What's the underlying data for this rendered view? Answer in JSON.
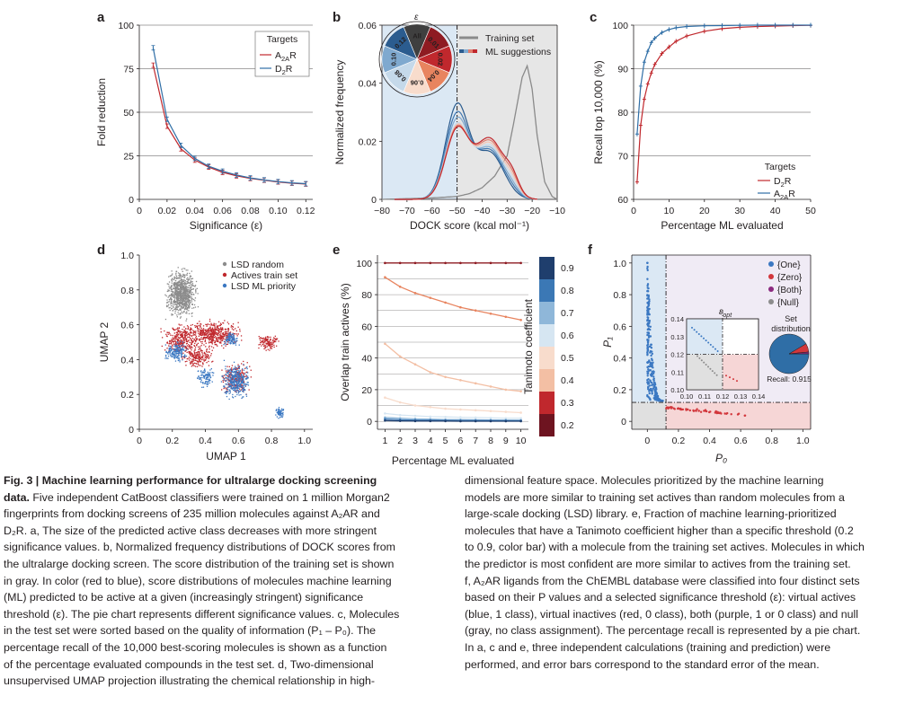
{
  "figure": {
    "caption_left_lines": [
      {
        "bold": "Fig. 3 | Machine learning performance for ultralarge docking screening",
        "text": ""
      },
      {
        "bold": "data.",
        "text": " Five independent CatBoost classifiers were trained on 1 million Morgan2"
      },
      {
        "bold": "",
        "text": "fingerprints from docking screens of 235 million molecules against A₂AR and"
      },
      {
        "bold": "",
        "text": "D₂R. a, The size of the predicted active class decreases with more stringent"
      },
      {
        "bold": "",
        "text": "significance values. b, Normalized frequency distributions of DOCK scores from"
      },
      {
        "bold": "",
        "text": "the ultralarge docking screen. The score distribution of the training set is shown"
      },
      {
        "bold": "",
        "text": "in gray. In color (red to blue), score distributions of molecules machine learning"
      },
      {
        "bold": "",
        "text": "(ML) predicted to be active at a given (increasingly stringent) significance"
      },
      {
        "bold": "",
        "text": "threshold (ε). The pie chart represents different significance values. c, Molecules"
      },
      {
        "bold": "",
        "text": "in the test set were sorted based on the quality of information (P₁ – P₀). The"
      },
      {
        "bold": "",
        "text": "percentage recall of the 10,000 best-scoring molecules is shown as a function"
      },
      {
        "bold": "",
        "text": "of the percentage evaluated compounds in the test set. d, Two-dimensional"
      },
      {
        "bold": "",
        "text": "unsupervised UMAP projection illustrating the chemical relationship in high-"
      }
    ],
    "caption_right_lines": [
      "dimensional feature space. Molecules prioritized by the machine learning",
      "models are more similar to training set actives than random molecules from a",
      "large-scale docking (LSD) library. e, Fraction of machine learning-prioritized",
      "molecules that have a Tanimoto coefficient higher than a specific threshold (0.2",
      "to 0.9, color bar) with a molecule from the training set actives. Molecules in which",
      "the predictor is most confident are more similar to actives from the training set.",
      "f, A₂AR ligands from the ChEMBL database were classified into four distinct sets",
      "based on their P values and a selected significance threshold (ε): virtual actives",
      "(blue, 1 class), virtual inactives (red, 0 class), both (purple, 1 or 0 class) and null",
      "(gray, no class assignment). The percentage recall is represented by a pie chart.",
      "In a, c and e, three independent calculations (training and prediction) were",
      "performed, and error bars correspond to the standard error of the mean."
    ]
  },
  "chart_data": [
    {
      "panel": "a",
      "type": "line",
      "xlabel": "Significance (ε)",
      "ylabel": "Fold reduction",
      "xlim": [
        0,
        0.125
      ],
      "ylim": [
        0,
        100
      ],
      "xticks": [
        "0",
        "0.02",
        "0.04",
        "0.06",
        "0.08",
        "0.10",
        "0.12"
      ],
      "yticks": [
        "0",
        "25",
        "50",
        "75",
        "100"
      ],
      "grid": "horizontal",
      "legend_title": "Targets",
      "legend_position": "top-right",
      "x": [
        0.01,
        0.02,
        0.03,
        0.04,
        0.05,
        0.06,
        0.07,
        0.08,
        0.09,
        0.1,
        0.11,
        0.12
      ],
      "series": [
        {
          "name": "A2AR",
          "color": "#c0282d",
          "values": [
            77,
            42,
            29,
            22.5,
            18.5,
            15.5,
            13.5,
            12,
            11,
            10,
            9.3,
            8.8
          ]
        },
        {
          "name": "D2R",
          "color": "#2f6ea6",
          "values": [
            87,
            46,
            31,
            23.5,
            19,
            16.2,
            14,
            12.3,
            11.2,
            10.2,
            9.5,
            9
          ]
        }
      ]
    },
    {
      "panel": "b",
      "type": "line",
      "xlabel": "DOCK score (kcal mol⁻¹)",
      "ylabel": "Normalized frequency",
      "xlim": [
        -80,
        -10
      ],
      "ylim": [
        0,
        0.06
      ],
      "xticks": [
        "−80",
        "−70",
        "−60",
        "−50",
        "−40",
        "−30",
        "−20",
        "−10"
      ],
      "yticks": [
        "0",
        "0.02",
        "0.04",
        "0.06"
      ],
      "threshold_x": -50,
      "legend_position": "top-right",
      "legend": [
        "Training set",
        "ML suggestions"
      ],
      "training_set": {
        "x": [
          -80,
          -60,
          -50,
          -45,
          -40,
          -35,
          -30,
          -27,
          -24,
          -22,
          -20,
          -18,
          -15,
          -12,
          -10
        ],
        "y": [
          0,
          0.0005,
          0.001,
          0.002,
          0.004,
          0.008,
          0.015,
          0.028,
          0.042,
          0.046,
          0.038,
          0.022,
          0.006,
          0.001,
          0
        ]
      },
      "ml_suggestions": [
        {
          "epsilon": 0.01,
          "color": "#2b5c8f",
          "peak": 0.032
        },
        {
          "epsilon": 0.02,
          "color": "#3f78b2",
          "peak": 0.029
        },
        {
          "epsilon": 0.04,
          "color": "#7fa9cf",
          "peak": 0.027
        },
        {
          "epsilon": 0.06,
          "color": "#c5d9ea",
          "peak": 0.025
        },
        {
          "epsilon": 0.08,
          "color": "#f2c3b4",
          "peak": 0.0245
        },
        {
          "epsilon": 0.1,
          "color": "#e07b6b",
          "peak": 0.024
        },
        {
          "epsilon": 0.12,
          "color": "#c0282d",
          "peak": 0.0235
        }
      ],
      "pie_labels": [
        "All",
        "0.01",
        "0.02",
        "0.04",
        "0.06",
        "0.08",
        "0.10",
        "0.12"
      ],
      "pie_axis_label": "ε"
    },
    {
      "panel": "c",
      "type": "line",
      "xlabel": "Percentage ML evaluated",
      "ylabel": "Recall top 10,000 (%)",
      "xlim": [
        0,
        50
      ],
      "ylim": [
        60,
        100
      ],
      "xticks": [
        "0",
        "10",
        "20",
        "30",
        "40",
        "50"
      ],
      "yticks": [
        "60",
        "70",
        "80",
        "90",
        "100"
      ],
      "grid": "horizontal",
      "legend_title": "Targets",
      "legend_position": "bottom-right",
      "series": [
        {
          "name": "D2R",
          "color": "#c0282d",
          "x": [
            1,
            2,
            3,
            4,
            5,
            6,
            8,
            10,
            12,
            15,
            20,
            25,
            30,
            35,
            40,
            45,
            50
          ],
          "values": [
            64,
            77,
            83,
            86.5,
            89,
            91,
            93.5,
            95,
            96.3,
            97.5,
            98.6,
            99.2,
            99.5,
            99.7,
            99.8,
            99.9,
            99.95
          ]
        },
        {
          "name": "A2AR",
          "color": "#2f6ea6",
          "x": [
            1,
            2,
            3,
            4,
            5,
            6,
            8,
            10,
            12,
            15,
            20,
            25,
            30,
            35,
            40,
            45,
            50
          ],
          "values": [
            75,
            86,
            91.5,
            94,
            96,
            97,
            98.3,
            99,
            99.4,
            99.7,
            99.85,
            99.9,
            99.95,
            100,
            100,
            100,
            100
          ]
        }
      ]
    },
    {
      "panel": "d",
      "type": "scatter",
      "xlabel": "UMAP 1",
      "ylabel": "UMAP 2",
      "xlim": [
        0,
        1.05
      ],
      "ylim": [
        0,
        1.0
      ],
      "xticks": [
        "0",
        "0.2",
        "0.4",
        "0.6",
        "0.8",
        "1.0"
      ],
      "yticks": [
        "0",
        "0.2",
        "0.4",
        "0.6",
        "0.8",
        "1.0"
      ],
      "legend_position": "top-right",
      "series": [
        {
          "name": "LSD random",
          "color": "#8c8c8c"
        },
        {
          "name": "Actives train set",
          "color": "#c0282d"
        },
        {
          "name": "LSD ML priority",
          "color": "#3b78c2"
        }
      ]
    },
    {
      "panel": "e",
      "type": "line",
      "xlabel": "Percentage ML evaluated",
      "ylabel": "Overlap train actives (%)",
      "xlim": [
        0.5,
        10.5
      ],
      "ylim": [
        -5,
        105
      ],
      "xticks": [
        "1",
        "2",
        "3",
        "4",
        "5",
        "6",
        "7",
        "8",
        "9",
        "10"
      ],
      "yticks": [
        "0",
        "20",
        "40",
        "60",
        "80",
        "100"
      ],
      "grid": "horizontal",
      "colorbar_label": "Tanimoto coefficient",
      "colorbar_ticks": [
        "0.9",
        "0.8",
        "0.7",
        "0.6",
        "0.5",
        "0.4",
        "0.3",
        "0.2"
      ],
      "x": [
        1,
        2,
        3,
        4,
        5,
        6,
        7,
        8,
        9,
        10
      ],
      "series": [
        {
          "name": "0.2",
          "color": "#8e1b22",
          "values": [
            100,
            100,
            100,
            100,
            100,
            100,
            100,
            100,
            100,
            100
          ]
        },
        {
          "name": "0.3",
          "color": "#e8845f",
          "values": [
            91,
            85,
            81,
            78,
            75,
            72,
            70,
            68,
            66,
            64
          ]
        },
        {
          "name": "0.4",
          "color": "#f3bfa4",
          "values": [
            49,
            41,
            36,
            31,
            28,
            26,
            24,
            22,
            20,
            19
          ]
        },
        {
          "name": "0.5",
          "color": "#f8dccc",
          "values": [
            15,
            12,
            10,
            9,
            8,
            7.5,
            7,
            6.5,
            6,
            5.5
          ]
        },
        {
          "name": "0.6",
          "color": "#d6e6f2",
          "values": [
            5,
            4,
            3.5,
            3,
            2.8,
            2.6,
            2.4,
            2.2,
            2,
            2
          ]
        },
        {
          "name": "0.7",
          "color": "#8fb7d9",
          "values": [
            2.5,
            2,
            1.6,
            1.4,
            1.2,
            1.1,
            1,
            0.9,
            0.9,
            0.8
          ]
        },
        {
          "name": "0.8",
          "color": "#3b78b5",
          "values": [
            1.5,
            1,
            0.8,
            0.7,
            0.6,
            0.5,
            0.5,
            0.5,
            0.4,
            0.4
          ]
        },
        {
          "name": "0.9",
          "color": "#1f3e6d",
          "values": [
            0.5,
            0.3,
            0.2,
            0.2,
            0.2,
            0.1,
            0.1,
            0.1,
            0.1,
            0.1
          ]
        }
      ]
    },
    {
      "panel": "f",
      "type": "scatter",
      "xlabel": "P₀",
      "ylabel": "P₁",
      "xlim": [
        -0.1,
        1.05
      ],
      "ylim": [
        -0.05,
        1.05
      ],
      "xticks": [
        "0",
        "0.2",
        "0.4",
        "0.6",
        "0.8",
        "1.0"
      ],
      "yticks": [
        "0",
        "0.2",
        "0.4",
        "0.6",
        "0.8",
        "1.0"
      ],
      "epsilon_opt": 0.12,
      "legend_position": "top-right",
      "legend": [
        {
          "name": "{One}",
          "color": "#3b78c2"
        },
        {
          "name": "{Zero}",
          "color": "#d2373c"
        },
        {
          "name": "{Both}",
          "color": "#8b2a7f"
        },
        {
          "name": "{Null}",
          "color": "#8c8c8c"
        }
      ],
      "pie": {
        "title": "Set distribution",
        "recall_label": "Recall: 0.915",
        "slices": [
          {
            "name": "{One}",
            "value": 0.915,
            "color": "#2f6ea6"
          },
          {
            "name": "{Zero}",
            "value": 0.07,
            "color": "#d2373c"
          },
          {
            "name": "{Both}",
            "value": 0.015,
            "color": "#8b2a7f"
          }
        ]
      },
      "inset": {
        "xlim": [
          0.1,
          0.14
        ],
        "ylim": [
          0.1,
          0.14
        ],
        "xticks": [
          "0.10",
          "0.11",
          "0.12",
          "0.13",
          "0.14"
        ],
        "yticks": [
          "0.10",
          "0.11",
          "0.12",
          "0.13",
          "0.14"
        ],
        "label": "ε_opt"
      }
    }
  ]
}
